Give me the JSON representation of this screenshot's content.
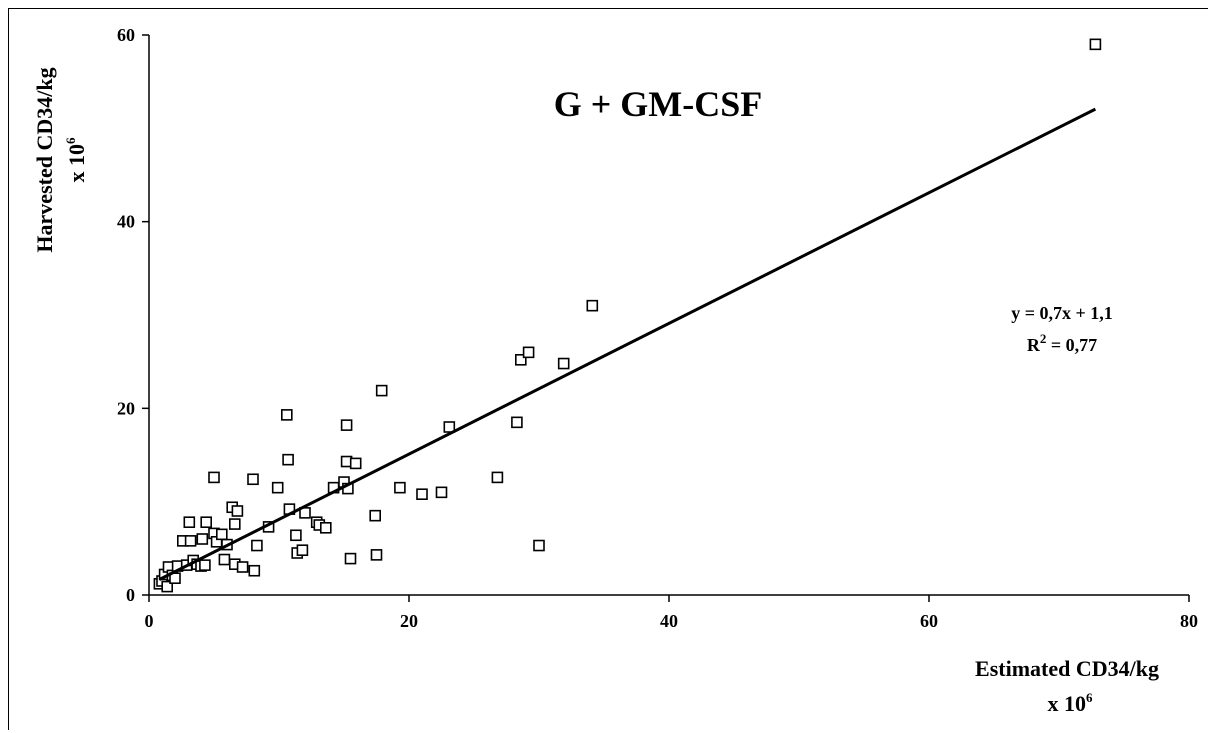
{
  "chart_data": {
    "type": "scatter",
    "title": "G + GM-CSF",
    "xlabel": "Estimated CD34/kg",
    "xlabel_unit": "x 10",
    "xlabel_exp": "6",
    "ylabel": "Harvested CD34/kg",
    "ylabel_unit": "x 10",
    "ylabel_exp": "6",
    "xlim": [
      0,
      80
    ],
    "ylim": [
      0,
      60
    ],
    "xticks": [
      0,
      20,
      40,
      60,
      80
    ],
    "yticks": [
      0,
      20,
      40,
      60
    ],
    "grid": false,
    "legend": "none",
    "marker": "open-square",
    "trendline": {
      "slope": 0.7,
      "intercept": 1.1,
      "x_range": [
        0.8,
        72.8
      ],
      "equation": "y = 0,7x + 1,1",
      "r2_label": "R",
      "r2_exp": "2",
      "r2_value": " = 0,77"
    },
    "series": [
      {
        "points": [
          [
            0.8,
            1.2
          ],
          [
            1.0,
            1.5
          ],
          [
            1.2,
            2.2
          ],
          [
            1.4,
            0.9
          ],
          [
            1.5,
            3.0
          ],
          [
            1.8,
            2.1
          ],
          [
            2.0,
            1.8
          ],
          [
            2.2,
            3.1
          ],
          [
            2.6,
            5.8
          ],
          [
            2.9,
            3.2
          ],
          [
            3.1,
            7.8
          ],
          [
            3.2,
            5.8
          ],
          [
            3.4,
            3.7
          ],
          [
            3.7,
            3.3
          ],
          [
            4.0,
            3.1
          ],
          [
            4.1,
            6.0
          ],
          [
            4.3,
            3.2
          ],
          [
            4.4,
            7.8
          ],
          [
            5.0,
            6.6
          ],
          [
            5.0,
            12.6
          ],
          [
            5.2,
            5.7
          ],
          [
            5.6,
            6.5
          ],
          [
            5.8,
            3.8
          ],
          [
            6.0,
            5.4
          ],
          [
            6.4,
            9.4
          ],
          [
            6.6,
            3.3
          ],
          [
            6.6,
            7.6
          ],
          [
            6.8,
            9.0
          ],
          [
            7.2,
            3.0
          ],
          [
            8.0,
            12.4
          ],
          [
            8.1,
            2.6
          ],
          [
            8.3,
            5.3
          ],
          [
            9.2,
            7.3
          ],
          [
            9.9,
            11.5
          ],
          [
            10.6,
            19.3
          ],
          [
            10.7,
            14.5
          ],
          [
            10.8,
            9.2
          ],
          [
            11.3,
            6.4
          ],
          [
            11.4,
            4.5
          ],
          [
            11.8,
            4.8
          ],
          [
            12.0,
            8.8
          ],
          [
            12.9,
            7.8
          ],
          [
            13.1,
            7.5
          ],
          [
            13.6,
            7.2
          ],
          [
            14.2,
            11.5
          ],
          [
            15.0,
            12.1
          ],
          [
            15.2,
            18.2
          ],
          [
            15.2,
            14.3
          ],
          [
            15.3,
            11.4
          ],
          [
            15.5,
            3.9
          ],
          [
            15.9,
            14.1
          ],
          [
            17.4,
            8.5
          ],
          [
            17.5,
            4.3
          ],
          [
            17.9,
            21.9
          ],
          [
            19.3,
            11.5
          ],
          [
            21.0,
            10.8
          ],
          [
            22.5,
            11.0
          ],
          [
            23.1,
            18.0
          ],
          [
            26.8,
            12.6
          ],
          [
            28.3,
            18.5
          ],
          [
            28.6,
            25.2
          ],
          [
            29.2,
            26.0
          ],
          [
            30.0,
            5.3
          ],
          [
            31.9,
            24.8
          ],
          [
            34.1,
            31.0
          ],
          [
            72.8,
            59.0
          ]
        ]
      }
    ]
  }
}
